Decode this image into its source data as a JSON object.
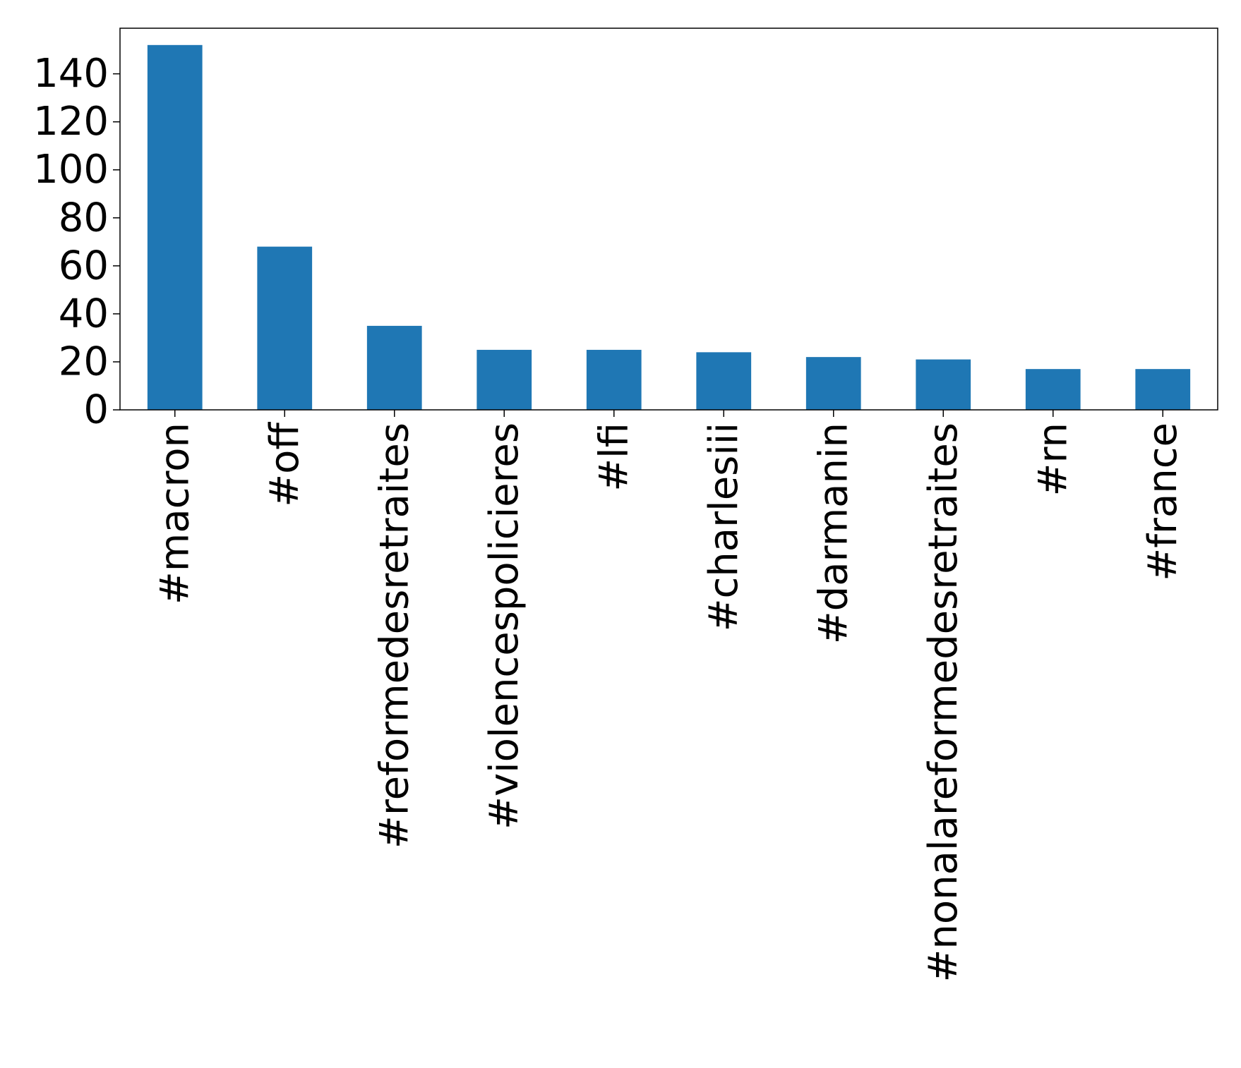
{
  "chart_data": {
    "type": "bar",
    "categories": [
      "#macron",
      "#off",
      "#reformedesretraites",
      "#violencespolicieres",
      "#lfi",
      "#charlesiii",
      "#darmanin",
      "#nonalareformedesretraites",
      "#rn",
      "#france"
    ],
    "values": [
      152,
      68,
      35,
      25,
      25,
      24,
      22,
      21,
      17,
      17
    ],
    "ylim": [
      0,
      159
    ],
    "yticks": [
      0,
      20,
      40,
      60,
      80,
      100,
      120,
      140
    ],
    "grid": false,
    "legend": "none",
    "bar_color": "#1f77b4",
    "axis_color": "#000000"
  }
}
